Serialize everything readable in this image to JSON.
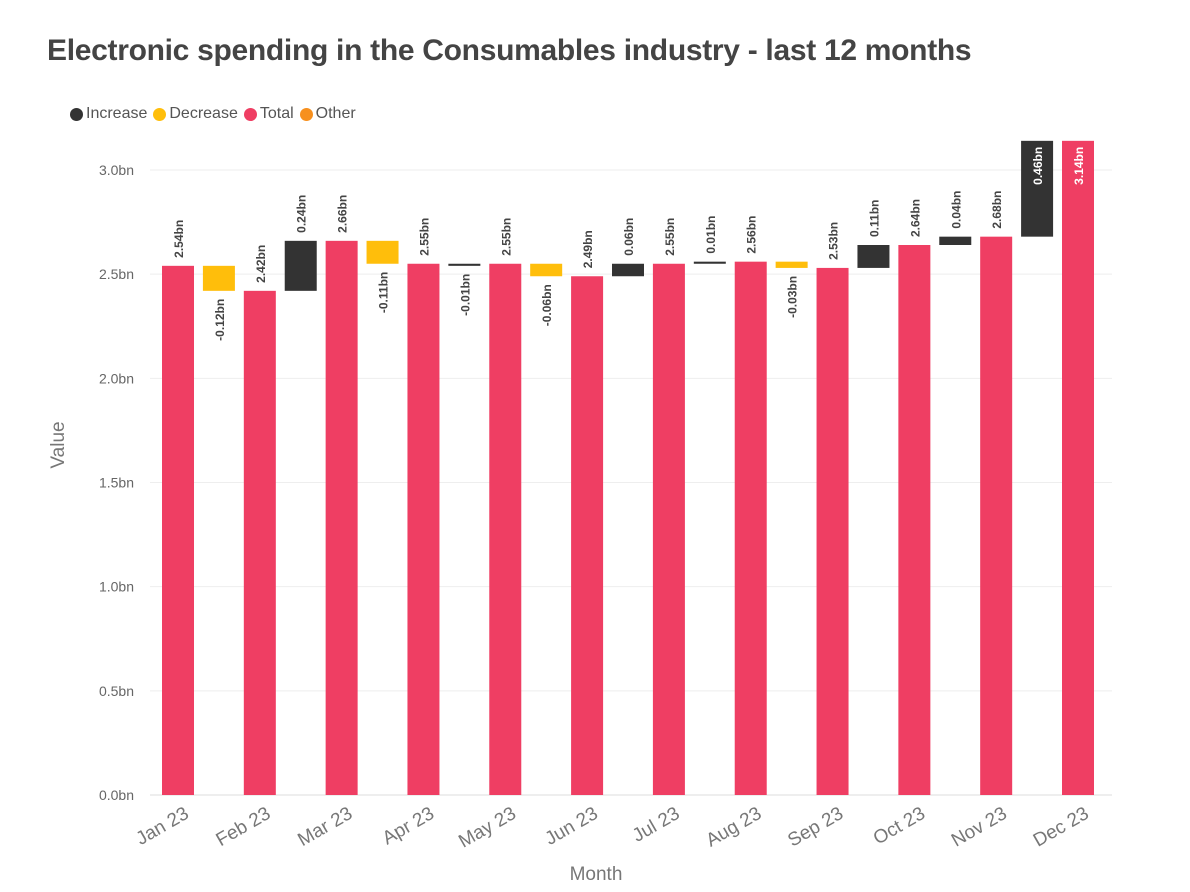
{
  "chart_data": {
    "type": "waterfall",
    "title": "Electronic spending in the Consumables industry - last 12 months",
    "xlabel": "Month",
    "ylabel": "Value",
    "ylim": [
      0,
      3.14
    ],
    "yticks": [
      "0.0bn",
      "0.5bn",
      "1.0bn",
      "1.5bn",
      "2.0bn",
      "2.5bn",
      "3.0bn"
    ],
    "ytick_values": [
      0,
      0.5,
      1.0,
      1.5,
      2.0,
      2.5,
      3.0
    ],
    "grid": true,
    "legend_position": "top-left",
    "legend": [
      {
        "label": "Increase",
        "color": "#333333"
      },
      {
        "label": "Decrease",
        "color": "#FFBE0B"
      },
      {
        "label": "Total",
        "color": "#EF3E63"
      },
      {
        "label": "Other",
        "color": "#F7901E"
      }
    ],
    "bars": [
      {
        "kind": "total",
        "month": "Jan 23",
        "value": 2.54,
        "label": "2.54bn"
      },
      {
        "kind": "decrease",
        "value": -0.12,
        "label": "-0.12bn"
      },
      {
        "kind": "total",
        "month": "Feb 23",
        "value": 2.42,
        "label": "2.42bn"
      },
      {
        "kind": "increase",
        "value": 0.24,
        "label": "0.24bn"
      },
      {
        "kind": "total",
        "month": "Mar 23",
        "value": 2.66,
        "label": "2.66bn"
      },
      {
        "kind": "decrease",
        "value": -0.11,
        "label": "-0.11bn"
      },
      {
        "kind": "total",
        "month": "Apr 23",
        "value": 2.55,
        "label": "2.55bn"
      },
      {
        "kind": "decrease",
        "value": -0.01,
        "label": "-0.01bn",
        "color": "#333333"
      },
      {
        "kind": "total",
        "month": "May 23",
        "value": 2.55,
        "label": "2.55bn"
      },
      {
        "kind": "decrease",
        "value": -0.06,
        "label": "-0.06bn"
      },
      {
        "kind": "total",
        "month": "Jun 23",
        "value": 2.49,
        "label": "2.49bn"
      },
      {
        "kind": "increase",
        "value": 0.06,
        "label": "0.06bn"
      },
      {
        "kind": "total",
        "month": "Jul 23",
        "value": 2.55,
        "label": "2.55bn"
      },
      {
        "kind": "increase",
        "value": 0.01,
        "label": "0.01bn"
      },
      {
        "kind": "total",
        "month": "Aug 23",
        "value": 2.56,
        "label": "2.56bn"
      },
      {
        "kind": "decrease",
        "value": -0.03,
        "label": "-0.03bn"
      },
      {
        "kind": "total",
        "month": "Sep 23",
        "value": 2.53,
        "label": "2.53bn"
      },
      {
        "kind": "increase",
        "value": 0.11,
        "label": "0.11bn"
      },
      {
        "kind": "total",
        "month": "Oct 23",
        "value": 2.64,
        "label": "2.64bn"
      },
      {
        "kind": "increase",
        "value": 0.04,
        "label": "0.04bn"
      },
      {
        "kind": "total",
        "month": "Nov 23",
        "value": 2.68,
        "label": "2.68bn"
      },
      {
        "kind": "increase",
        "value": 0.46,
        "label": "0.46bn"
      },
      {
        "kind": "total",
        "month": "Dec 23",
        "value": 3.14,
        "label": "3.14bn"
      }
    ]
  }
}
